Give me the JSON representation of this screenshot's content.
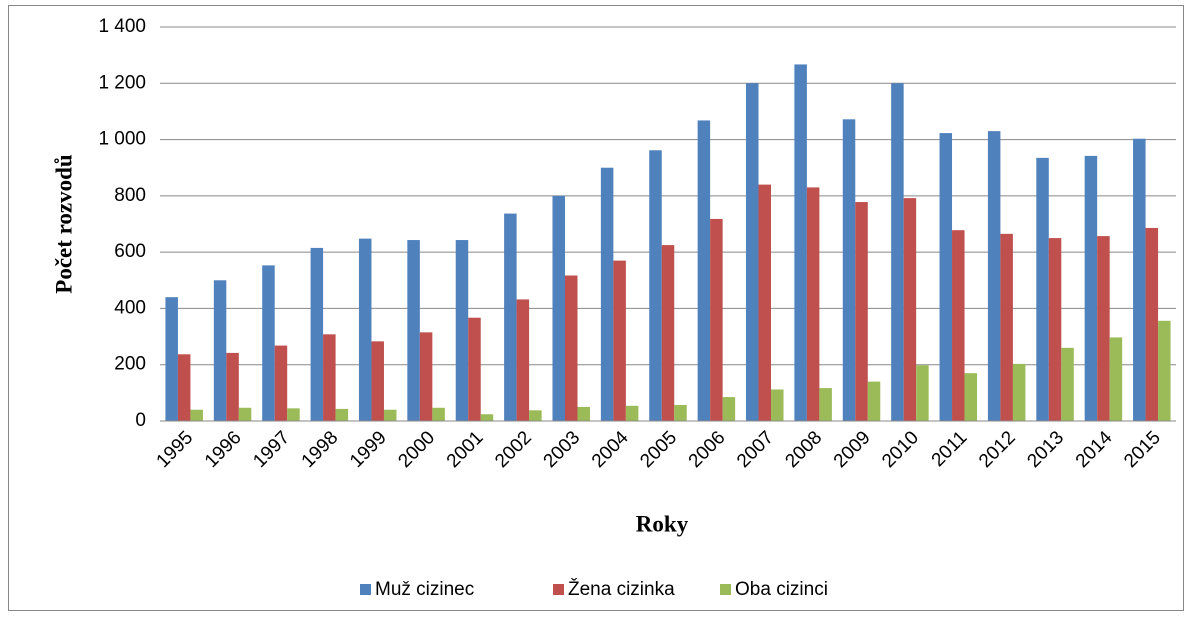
{
  "chart_data": {
    "type": "bar",
    "x_label": "Roky",
    "y_label": "Počet rozvodů",
    "categories": [
      "1995",
      "1996",
      "1997",
      "1998",
      "1999",
      "2000",
      "2001",
      "2002",
      "2003",
      "2004",
      "2005",
      "2006",
      "2007",
      "2008",
      "2009",
      "2010",
      "2011",
      "2012",
      "2013",
      "2014",
      "2015"
    ],
    "series": [
      {
        "name": "Muž cizinec",
        "color": "#4f81bd",
        "values": [
          440,
          500,
          553,
          615,
          648,
          643,
          643,
          737,
          800,
          900,
          962,
          1068,
          1200,
          1267,
          1072,
          1200,
          1023,
          1030,
          935,
          942,
          1003
        ]
      },
      {
        "name": "Žena cizinka",
        "color": "#c0504d",
        "values": [
          237,
          242,
          268,
          308,
          283,
          315,
          367,
          432,
          517,
          570,
          625,
          718,
          840,
          830,
          778,
          792,
          678,
          665,
          650,
          657,
          686
        ]
      },
      {
        "name": "Oba cizinci",
        "color": "#9bbb59",
        "values": [
          40,
          47,
          45,
          43,
          40,
          47,
          24,
          38,
          50,
          54,
          57,
          85,
          112,
          117,
          140,
          198,
          170,
          203,
          260,
          297,
          356
        ]
      }
    ],
    "ylim": [
      0,
      1400
    ],
    "yticks": [
      0,
      200,
      400,
      600,
      800,
      {
        "value": 1000,
        "label": "1 000"
      },
      {
        "value": 1200,
        "label": "1 200"
      },
      {
        "value": 1400,
        "label": "1 400"
      }
    ],
    "grid": true,
    "legend": "bottom"
  }
}
